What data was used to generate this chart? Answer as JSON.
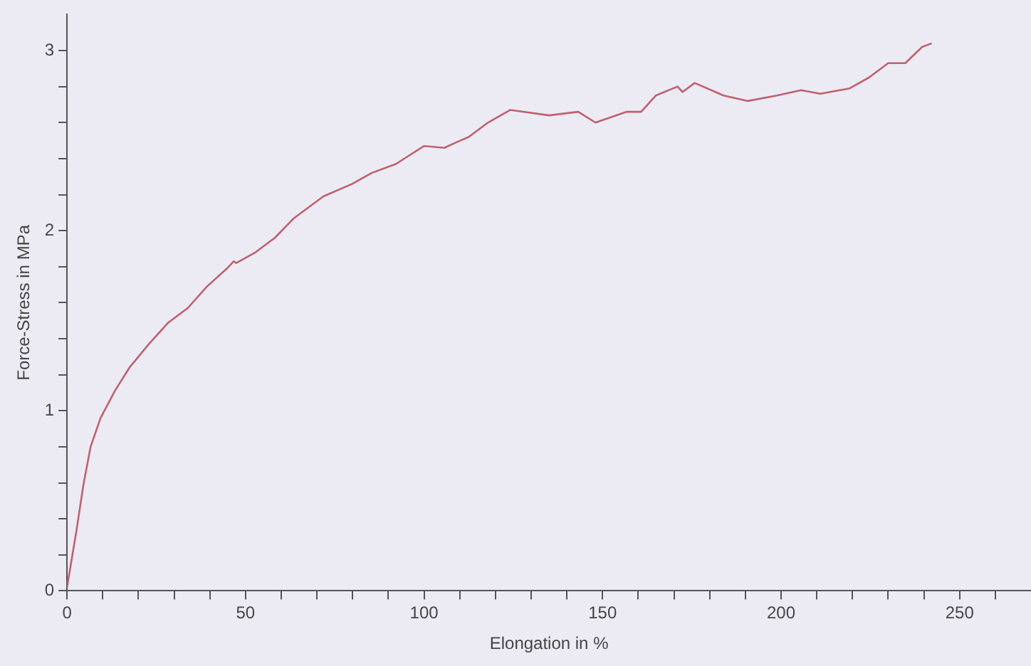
{
  "chart_data": {
    "type": "line",
    "xlabel": "Elongation in %",
    "ylabel": "Force-Stress in MPa",
    "x": [
      0,
      2.6,
      4.6,
      6.6,
      9.4,
      13.4,
      17.5,
      22.9,
      28.4,
      33.8,
      39.2,
      44.8,
      46.7,
      47.4,
      52.8,
      58.2,
      63.6,
      71.8,
      79.9,
      85.3,
      92.1,
      100,
      105.7,
      109,
      112.5,
      117.9,
      124.1,
      135,
      143.2,
      148,
      156.8,
      160.8,
      164.9,
      171,
      172.4,
      175.8,
      183.9,
      190.7,
      198.8,
      205.6,
      211,
      219.2,
      224.6,
      230,
      234.8,
      239.5,
      242.2
    ],
    "series": [
      {
        "color": "#c0606e",
        "values": [
          0.02,
          0.33,
          0.59,
          0.8,
          0.96,
          1.11,
          1.24,
          1.37,
          1.49,
          1.57,
          1.69,
          1.79,
          1.83,
          1.82,
          1.88,
          1.96,
          2.07,
          2.19,
          2.26,
          2.32,
          2.37,
          2.47,
          2.46,
          2.49,
          2.52,
          2.6,
          2.67,
          2.64,
          2.66,
          2.6,
          2.66,
          2.66,
          2.75,
          2.8,
          2.77,
          2.82,
          2.75,
          2.72,
          2.75,
          2.78,
          2.76,
          2.79,
          2.85,
          2.93,
          2.93,
          3.02,
          3.04
        ]
      }
    ],
    "xlim": [
      0,
      270
    ],
    "xticks": [
      0,
      {
        "value": 10,
        "label": null
      },
      {
        "value": 20,
        "label": null
      },
      {
        "value": 30,
        "label": null
      },
      {
        "value": 40,
        "label": null
      },
      50,
      {
        "value": 60,
        "label": null
      },
      {
        "value": 70,
        "label": null
      },
      {
        "value": 80,
        "label": null
      },
      {
        "value": 90,
        "label": null
      },
      100,
      {
        "value": 110,
        "label": null
      },
      {
        "value": 120,
        "label": null
      },
      {
        "value": 130,
        "label": null
      },
      {
        "value": 140,
        "label": null
      },
      150,
      {
        "value": 160,
        "label": null
      },
      {
        "value": 170,
        "label": null
      },
      {
        "value": 180,
        "label": null
      },
      {
        "value": 190,
        "label": null
      },
      200,
      {
        "value": 210,
        "label": null
      },
      {
        "value": 220,
        "label": null
      },
      {
        "value": 230,
        "label": null
      },
      {
        "value": 240,
        "label": null
      },
      250,
      {
        "value": 260,
        "label": null
      }
    ],
    "ylim": [
      0,
      3.2
    ],
    "yticks": [
      0,
      {
        "value": 0.2,
        "label": null
      },
      {
        "value": 0.4,
        "label": null
      },
      {
        "value": 0.6,
        "label": null
      },
      {
        "value": 0.8,
        "label": null
      },
      1,
      {
        "value": 1.2,
        "label": null
      },
      {
        "value": 1.4,
        "label": null
      },
      {
        "value": 1.6,
        "label": null
      },
      {
        "value": 1.8,
        "label": null
      },
      2,
      {
        "value": 2.2,
        "label": null
      },
      {
        "value": 2.4,
        "label": null
      },
      {
        "value": 2.6,
        "label": null
      },
      {
        "value": 2.8,
        "label": null
      },
      3
    ],
    "grid": false,
    "legend": false,
    "marker": "none",
    "line_style": "solid"
  }
}
